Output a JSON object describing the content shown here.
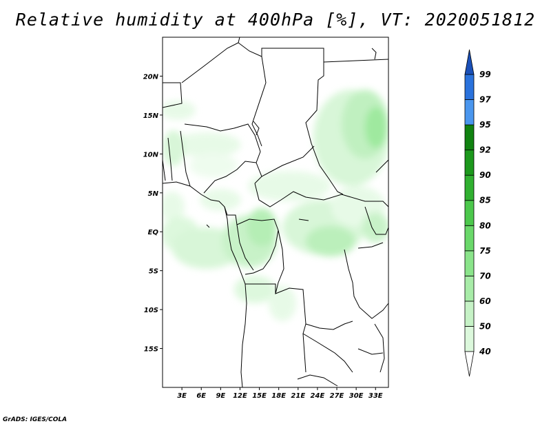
{
  "title": "Relative humidity at 400hPa [%], VT: 2020051812",
  "credit": "GrADS: IGES/COLA",
  "map": {
    "lon_range": [
      0,
      35
    ],
    "lat_range": [
      -20,
      25
    ],
    "lat_ticks": [
      {
        "value": 20,
        "label": "20N"
      },
      {
        "value": 15,
        "label": "15N"
      },
      {
        "value": 10,
        "label": "10N"
      },
      {
        "value": 5,
        "label": "5N"
      },
      {
        "value": 0,
        "label": "EQ"
      },
      {
        "value": -5,
        "label": "5S"
      },
      {
        "value": -10,
        "label": "10S"
      },
      {
        "value": -15,
        "label": "15S"
      }
    ],
    "lon_ticks": [
      {
        "value": 3,
        "label": "3E"
      },
      {
        "value": 6,
        "label": "6E"
      },
      {
        "value": 9,
        "label": "9E"
      },
      {
        "value": 12,
        "label": "12E"
      },
      {
        "value": 15,
        "label": "15E"
      },
      {
        "value": 18,
        "label": "18E"
      },
      {
        "value": 21,
        "label": "21E"
      },
      {
        "value": 24,
        "label": "24E"
      },
      {
        "value": 27,
        "label": "27E"
      },
      {
        "value": 30,
        "label": "30E"
      },
      {
        "value": 33,
        "label": "33E"
      }
    ]
  },
  "colorbar": {
    "levels": [
      {
        "label": "40",
        "color": "#f0fcf0"
      },
      {
        "label": "50",
        "color": "#dcf8dc"
      },
      {
        "label": "60",
        "color": "#c6f2c6"
      },
      {
        "label": "70",
        "color": "#a8eca8"
      },
      {
        "label": "75",
        "color": "#8ae48a"
      },
      {
        "label": "80",
        "color": "#6ad86a"
      },
      {
        "label": "85",
        "color": "#4cc84c"
      },
      {
        "label": "90",
        "color": "#30b030"
      },
      {
        "label": "92",
        "color": "#1c981c"
      },
      {
        "label": "95",
        "color": "#108210"
      },
      {
        "label": "97",
        "color": "#4a96ee"
      },
      {
        "label": "99",
        "color": "#2a72dc"
      }
    ],
    "top_arrow_color": "#1a50b8",
    "bottom_arrow_color": "#ffffff"
  }
}
